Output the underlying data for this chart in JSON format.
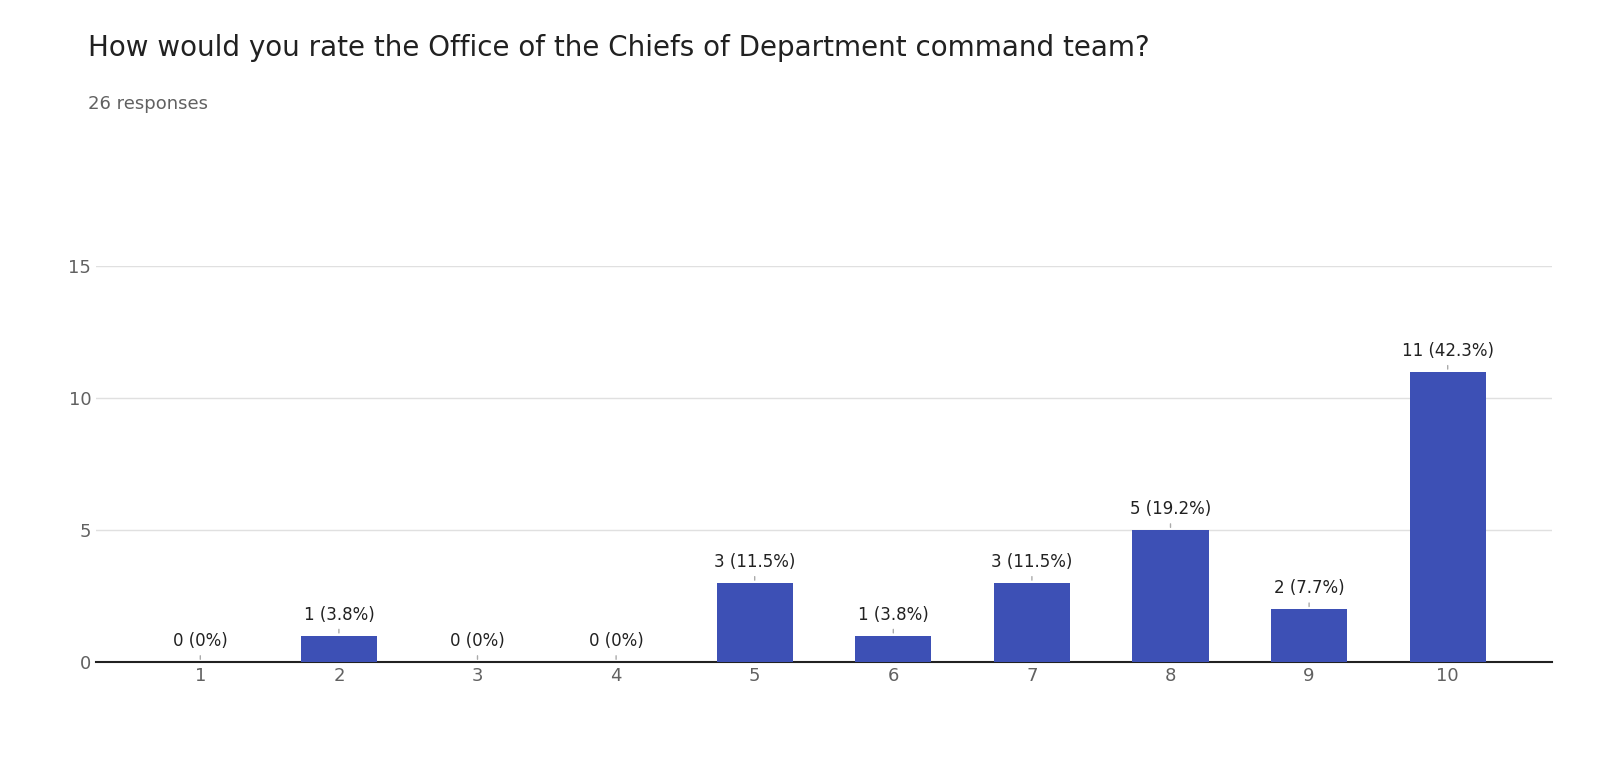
{
  "title": "How would you rate the Office of the Chiefs of Department command team?",
  "subtitle": "26 responses",
  "categories": [
    1,
    2,
    3,
    4,
    5,
    6,
    7,
    8,
    9,
    10
  ],
  "values": [
    0,
    1,
    0,
    0,
    3,
    1,
    3,
    5,
    2,
    11
  ],
  "labels": [
    "0 (0%)",
    "1 (3.8%)",
    "0 (0%)",
    "0 (0%)",
    "3 (11.5%)",
    "1 (3.8%)",
    "3 (11.5%)",
    "5 (19.2%)",
    "2 (7.7%)",
    "11 (42.3%)"
  ],
  "bar_color": "#3d50b5",
  "background_color": "#ffffff",
  "ylim": [
    0,
    15
  ],
  "yticks": [
    0,
    5,
    10,
    15
  ],
  "title_fontsize": 20,
  "subtitle_fontsize": 13,
  "label_fontsize": 12,
  "tick_fontsize": 13,
  "grid_color": "#e0e0e0",
  "annotation_line_color": "#aaaaaa",
  "title_color": "#212121",
  "subtitle_color": "#616161",
  "tick_color": "#616161"
}
